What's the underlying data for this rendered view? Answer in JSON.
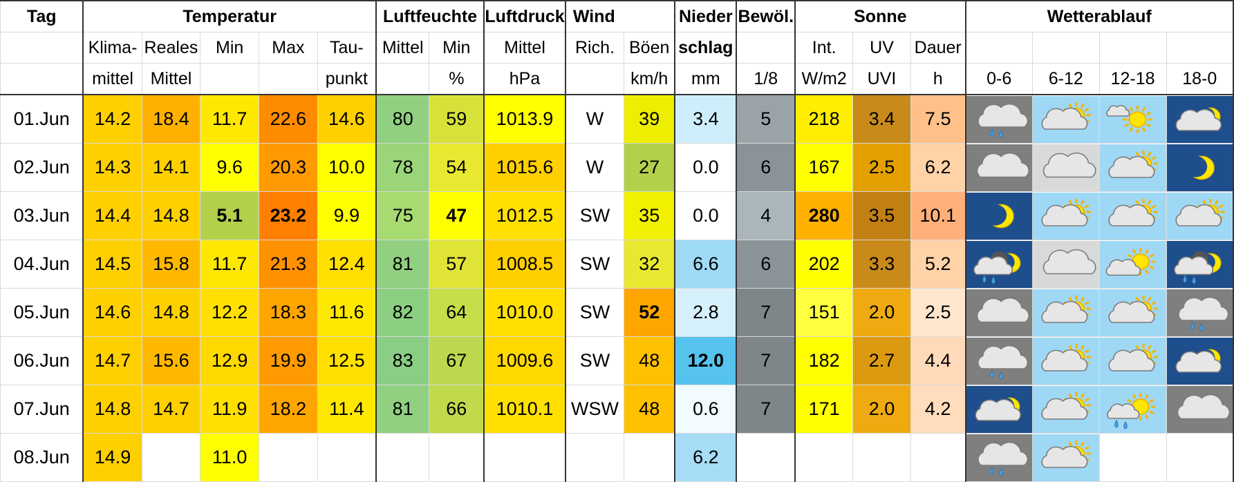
{
  "header": {
    "row1": [
      "Tag",
      "Temperatur",
      "",
      "",
      "",
      "",
      "Luftfeuchte",
      "",
      "Luftdruck",
      "Wind",
      "",
      "Nieder",
      "Bewöl.",
      "",
      "Sonne",
      "",
      "Wetterablauf",
      "",
      "",
      ""
    ],
    "row2": [
      "",
      "Klima-",
      "Reales",
      "Min",
      "Max",
      "Tau-",
      "Mittel",
      "Min",
      "Mittel",
      "Rich.",
      "Böen",
      "schlag",
      "",
      "Int.",
      "UV",
      "Dauer",
      "",
      "",
      "",
      ""
    ],
    "row3": [
      "",
      "mittel",
      "Mittel",
      "",
      "",
      "punkt",
      "",
      "%",
      "hPa",
      "",
      "km/h",
      "mm",
      "1/8",
      "W/m2",
      "UVI",
      "h",
      "0-6",
      "6-12",
      "12-18",
      "18-0"
    ]
  },
  "colors": {
    "gold": "#ffd000",
    "orange_light": "#ffb800",
    "orange": "#ff9a00",
    "orange_dark": "#ff8c00",
    "yellow": "#ffff00",
    "yellow_pale": "#f2f000",
    "green": "#8fcf7f",
    "green_light": "#b5db6b",
    "lime": "#d4e84a",
    "rain_light": "#cfeefc",
    "rain_mid": "#a6dcf5",
    "rain_dark": "#56c3ee",
    "cloud_gray": "#9aa6ad",
    "uv_brown": "#c98a1a",
    "sun_peach": "#ffc79a"
  },
  "rows": [
    {
      "tag": "01.Jun",
      "klima": "14.2",
      "real": "18.4",
      "min": "11.7",
      "max": "22.6",
      "tau": "14.6",
      "hum": "80",
      "hmin": "59",
      "press": "1013.9",
      "dir": "W",
      "gust": "39",
      "rain": "3.4",
      "cloud": "5",
      "int": "218",
      "uv": "3.4",
      "dur": "7.5",
      "c": {
        "klima": "#ffd000",
        "real": "#ffb000",
        "min": "#ffe800",
        "max": "#ff8c00",
        "tau": "#ffd000",
        "hum": "#90d080",
        "hmin": "#d6e23a",
        "press": "#ffff00",
        "dir": "#ffffff",
        "gust": "#eeee00",
        "rain": "#cfeefc",
        "cloud": "#9aa4a8",
        "int": "#ffee00",
        "uv": "#c88a1a",
        "dur": "#ffc08a"
      },
      "icons": [
        "gray-rain",
        "sky-cloud-sun",
        "sky-sun-small-cloud",
        "night-cloud-moon"
      ]
    },
    {
      "tag": "02.Jun",
      "klima": "14.3",
      "real": "14.1",
      "min": "9.6",
      "max": "20.3",
      "tau": "10.0",
      "hum": "78",
      "hmin": "54",
      "press": "1015.6",
      "dir": "W",
      "gust": "27",
      "rain": "0.0",
      "cloud": "6",
      "int": "167",
      "uv": "2.5",
      "dur": "6.2",
      "c": {
        "klima": "#ffd000",
        "real": "#ffd000",
        "min": "#ffff00",
        "max": "#ff9a00",
        "tau": "#ffff00",
        "hum": "#9bd57a",
        "hmin": "#e8e830",
        "press": "#ffd000",
        "dir": "#ffffff",
        "gust": "#b3d04a",
        "rain": "#ffffff",
        "cloud": "#8a9397",
        "int": "#ffff00",
        "uv": "#e3a000",
        "dur": "#ffd2a8"
      },
      "icons": [
        "gray-cloud",
        "pale-cloud",
        "sky-cloud-sun",
        "night-moon"
      ]
    },
    {
      "tag": "03.Jun",
      "klima": "14.4",
      "real": "14.8",
      "min": "5.1",
      "max": "23.2",
      "tau": "9.9",
      "hum": "75",
      "hmin": "47",
      "press": "1012.5",
      "dir": "SW",
      "gust": "35",
      "rain": "0.0",
      "cloud": "4",
      "int": "280",
      "uv": "3.5",
      "dur": "10.1",
      "c": {
        "klima": "#ffd000",
        "real": "#ffd000",
        "min": "#b3d04a",
        "max": "#ff8000",
        "tau": "#ffff00",
        "hum": "#a8da72",
        "hmin": "#ffff00",
        "press": "#ffe000",
        "dir": "#ffffff",
        "gust": "#f0f000",
        "rain": "#ffffff",
        "cloud": "#aab6bb",
        "int": "#ffb000",
        "uv": "#c27f12",
        "dur": "#ffb07a"
      },
      "bold": [
        "min",
        "max",
        "hmin",
        "int"
      ],
      "icons": [
        "night-moon",
        "sky-cloud-sun",
        "sky-cloud-sun",
        "sky-cloud-sun"
      ]
    },
    {
      "tag": "04.Jun",
      "klima": "14.5",
      "real": "15.8",
      "min": "11.7",
      "max": "21.3",
      "tau": "12.4",
      "hum": "81",
      "hmin": "57",
      "press": "1008.5",
      "dir": "SW",
      "gust": "32",
      "rain": "6.6",
      "cloud": "6",
      "int": "202",
      "uv": "3.3",
      "dur": "5.2",
      "c": {
        "klima": "#ffd000",
        "real": "#ffb800",
        "min": "#ffe800",
        "max": "#ff9000",
        "tau": "#ffe000",
        "hum": "#90d080",
        "hmin": "#e0e436",
        "press": "#ffd000",
        "dir": "#ffffff",
        "gust": "#e8e830",
        "rain": "#9edaf4",
        "cloud": "#8a9397",
        "int": "#ffff00",
        "uv": "#c98a1a",
        "dur": "#ffd2a8"
      },
      "icons": [
        "night-rain-moon",
        "pale-cloud",
        "sky-small-cloud-sun",
        "night-rain-moon"
      ]
    },
    {
      "tag": "05.Jun",
      "klima": "14.6",
      "real": "14.8",
      "min": "12.2",
      "max": "18.3",
      "tau": "11.6",
      "hum": "82",
      "hmin": "64",
      "press": "1010.0",
      "dir": "SW",
      "gust": "52",
      "rain": "2.8",
      "cloud": "7",
      "int": "151",
      "uv": "2.0",
      "dur": "2.5",
      "c": {
        "klima": "#ffd000",
        "real": "#ffd000",
        "min": "#ffe000",
        "max": "#ffa500",
        "tau": "#ffe800",
        "hum": "#8dcf82",
        "hmin": "#c5de4a",
        "press": "#ffe000",
        "dir": "#ffffff",
        "gust": "#ffa500",
        "rain": "#d6f0fc",
        "cloud": "#7e8689",
        "int": "#ffff40",
        "uv": "#eeaa10",
        "dur": "#ffe6cc"
      },
      "bold": [
        "gust"
      ],
      "icons": [
        "gray-cloud",
        "sky-cloud-sun",
        "sky-cloud-sun",
        "gray-rain"
      ]
    },
    {
      "tag": "06.Jun",
      "klima": "14.7",
      "real": "15.6",
      "min": "12.9",
      "max": "19.9",
      "tau": "12.5",
      "hum": "83",
      "hmin": "67",
      "press": "1009.6",
      "dir": "SW",
      "gust": "48",
      "rain": "12.0",
      "cloud": "7",
      "int": "182",
      "uv": "2.7",
      "dur": "4.4",
      "c": {
        "klima": "#ffd000",
        "real": "#ffb800",
        "min": "#ffd800",
        "max": "#ff9a00",
        "tau": "#ffe000",
        "hum": "#8acd84",
        "hmin": "#bcd84e",
        "press": "#ffd800",
        "dir": "#ffffff",
        "gust": "#ffc000",
        "rain": "#56c3ee",
        "cloud": "#7e8689",
        "int": "#ffff00",
        "uv": "#dc9a10",
        "dur": "#ffdab8"
      },
      "bold": [
        "rain"
      ],
      "icons": [
        "gray-rain",
        "sky-cloud-sun",
        "sky-cloud-sun",
        "night-cloud-moon"
      ]
    },
    {
      "tag": "07.Jun",
      "klima": "14.8",
      "real": "14.7",
      "min": "11.9",
      "max": "18.2",
      "tau": "11.4",
      "hum": "81",
      "hmin": "66",
      "press": "1010.1",
      "dir": "WSW",
      "gust": "48",
      "rain": "0.6",
      "cloud": "7",
      "int": "171",
      "uv": "2.0",
      "dur": "4.2",
      "c": {
        "klima": "#ffd000",
        "real": "#ffd000",
        "min": "#ffe000",
        "max": "#ffa500",
        "tau": "#ffe800",
        "hum": "#90d080",
        "hmin": "#c0da4c",
        "press": "#ffe000",
        "dir": "#ffffff",
        "gust": "#ffc000",
        "rain": "#f2fbff",
        "cloud": "#7e8689",
        "int": "#ffff00",
        "uv": "#eeaa10",
        "dur": "#ffdcbc"
      },
      "icons": [
        "night-cloud-moon",
        "sky-cloud-sun",
        "sky-rain-sun",
        "gray-cloud"
      ]
    },
    {
      "tag": "08.Jun",
      "klima": "14.9",
      "real": "",
      "min": "11.0",
      "max": "",
      "tau": "",
      "hum": "",
      "hmin": "",
      "press": "",
      "dir": "",
      "gust": "",
      "rain": "6.2",
      "cloud": "",
      "int": "",
      "uv": "",
      "dur": "",
      "c": {
        "klima": "#ffd000",
        "real": "#ffffff",
        "min": "#ffff00",
        "max": "#ffffff",
        "tau": "#ffffff",
        "hum": "#ffffff",
        "hmin": "#ffffff",
        "press": "#ffffff",
        "dir": "#ffffff",
        "gust": "#ffffff",
        "rain": "#a6dcf5",
        "cloud": "#ffffff",
        "int": "#ffffff",
        "uv": "#ffffff",
        "dur": "#ffffff"
      },
      "icons": [
        "gray-rain",
        "sky-cloud-sun",
        "",
        ""
      ]
    }
  ]
}
